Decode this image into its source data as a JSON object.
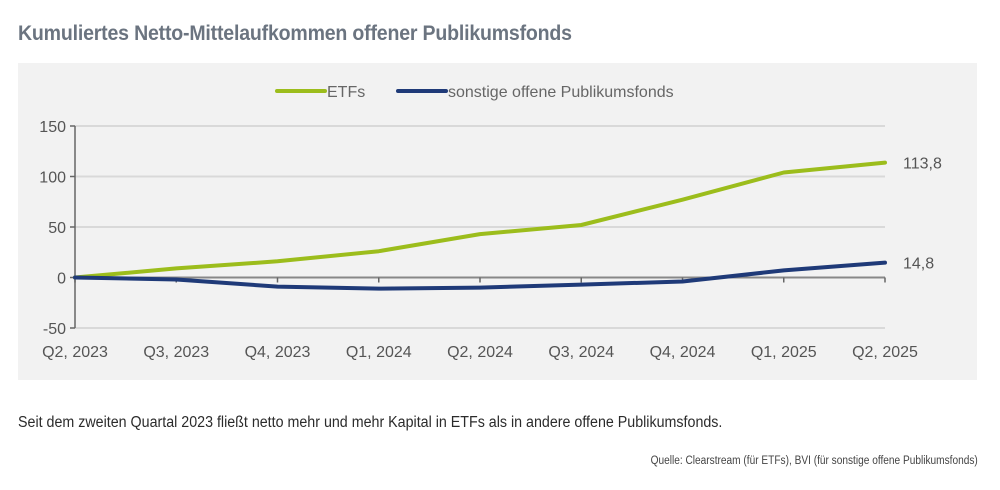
{
  "title": "Kumuliertes Netto-Mittelaufkommen offener Publikumsfonds",
  "caption": "Seit dem zweiten Quartal 2023 fließt netto mehr und mehr Kapital in ETFs als in andere offene Publikumsfonds.",
  "source": "Quelle: Clearstream (für ETFs), BVI (für sonstige offene Publikumsfonds)",
  "chart_data": {
    "type": "line",
    "title": "Kumuliertes Netto-Mittelaufkommen offener Publikumsfonds",
    "xlabel": "",
    "ylabel": "",
    "categories": [
      "Q2, 2023",
      "Q3, 2023",
      "Q4, 2023",
      "Q1, 2024",
      "Q2, 2024",
      "Q3, 2024",
      "Q4, 2024",
      "Q1, 2025",
      "Q2, 2025"
    ],
    "ylim": [
      -50,
      150
    ],
    "yticks": [
      -50,
      0,
      50,
      100,
      150
    ],
    "ytick_labels": [
      "-50",
      "0",
      "50",
      "100",
      "150"
    ],
    "grid": true,
    "legend": "top-center",
    "series": [
      {
        "name": "ETFs",
        "color": "#9cbd1c",
        "values": [
          0,
          9,
          16,
          26,
          43,
          52,
          77,
          104,
          113.8
        ],
        "end_label": "113,8"
      },
      {
        "name": "sonstige offene Publikumsfonds",
        "color": "#1f3a78",
        "values": [
          0,
          -2,
          -9,
          -11,
          -10,
          -7,
          -4,
          7,
          14.8
        ],
        "end_label": "14,8"
      }
    ]
  }
}
